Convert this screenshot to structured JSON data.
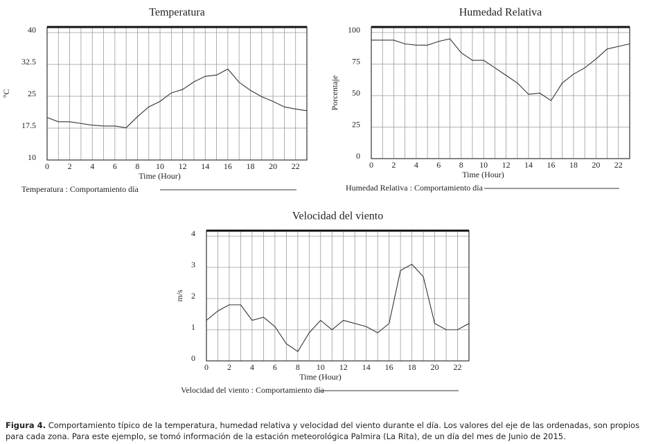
{
  "chart_data": [
    {
      "type": "line",
      "title": "Temperatura",
      "xlabel": "Time (Hour)",
      "ylabel": "°C",
      "x": [
        0,
        1,
        2,
        3,
        4,
        5,
        6,
        7,
        8,
        9,
        10,
        11,
        12,
        13,
        14,
        15,
        16,
        17,
        18,
        19,
        20,
        21,
        22,
        23
      ],
      "series": [
        {
          "name": "Temperatura : Comportamiento día",
          "color": "#333333",
          "values": [
            20.0,
            19.0,
            19.0,
            18.6,
            18.2,
            18.0,
            18.0,
            17.6,
            20.2,
            22.5,
            23.8,
            25.8,
            26.6,
            28.4,
            29.7,
            30.0,
            31.4,
            28.3,
            26.4,
            24.9,
            23.8,
            22.5,
            22.0,
            21.6
          ]
        }
      ],
      "xlim": [
        0,
        23
      ],
      "xticks": [
        0,
        2,
        4,
        6,
        8,
        10,
        12,
        14,
        16,
        18,
        20,
        22
      ],
      "ylim": [
        10,
        40
      ],
      "yticks": [
        10,
        17.5,
        25,
        32.5,
        40
      ],
      "grid": true
    },
    {
      "type": "line",
      "title": "Humedad Relativa",
      "xlabel": "Time (Hour)",
      "ylabel": "Porcentaje",
      "x": [
        0,
        1,
        2,
        3,
        4,
        5,
        6,
        7,
        8,
        9,
        10,
        11,
        12,
        13,
        14,
        15,
        16,
        17,
        18,
        19,
        20,
        21,
        22,
        23
      ],
      "series": [
        {
          "name": "Humedad Relativa : Comportamiento día",
          "color": "#333333",
          "values": [
            94,
            94,
            94,
            91,
            90,
            90,
            93,
            95,
            84,
            78,
            78,
            72,
            66,
            60,
            51,
            52,
            46,
            60,
            67,
            72,
            79,
            87,
            89,
            91
          ]
        }
      ],
      "xlim": [
        0,
        23
      ],
      "xticks": [
        0,
        2,
        4,
        6,
        8,
        10,
        12,
        14,
        16,
        18,
        20,
        22
      ],
      "ylim": [
        0,
        100
      ],
      "yticks": [
        0,
        25,
        50,
        75,
        100
      ],
      "grid": true
    },
    {
      "type": "line",
      "title": "Velocidad del viento",
      "xlabel": "Time (Hour)",
      "ylabel": "m/s",
      "x": [
        0,
        1,
        2,
        3,
        4,
        5,
        6,
        7,
        8,
        9,
        10,
        11,
        12,
        13,
        14,
        15,
        16,
        17,
        18,
        19,
        20,
        21,
        22,
        23
      ],
      "series": [
        {
          "name": "Velocidad del viento : Comportamiento día",
          "color": "#333333",
          "values": [
            1.3,
            1.6,
            1.8,
            1.8,
            1.3,
            1.4,
            1.1,
            0.55,
            0.3,
            0.9,
            1.3,
            1.0,
            1.3,
            1.2,
            1.1,
            0.9,
            1.2,
            2.9,
            3.1,
            2.7,
            1.2,
            1.0,
            1.0,
            1.2
          ]
        }
      ],
      "xlim": [
        0,
        23
      ],
      "xticks": [
        0,
        2,
        4,
        6,
        8,
        10,
        12,
        14,
        16,
        18,
        20,
        22
      ],
      "ylim": [
        0,
        4
      ],
      "yticks": [
        0,
        1,
        2,
        3,
        4
      ],
      "grid": true
    }
  ],
  "caption": {
    "label": "Figura 4.",
    "text": "Comportamiento típico de la temperatura, humedad relativa y velocidad del viento durante el día. Los valores del eje de las ordenadas, son propios para cada zona. Para este ejemplo, se tomó información de la estación meteorológica Palmira (La Rita), de un día del mes de Junio de 2015."
  }
}
